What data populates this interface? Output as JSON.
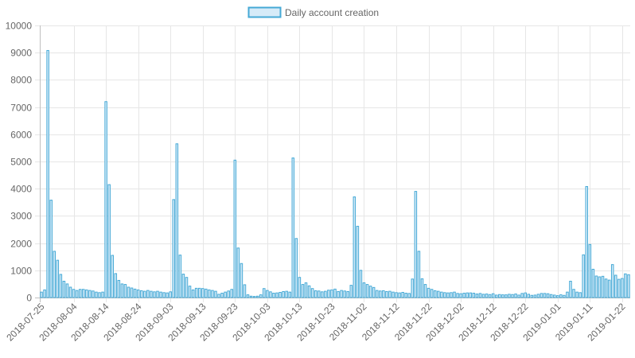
{
  "chart_data": {
    "type": "bar",
    "title": "",
    "xlabel": "",
    "ylabel": "",
    "ylim": [
      0,
      10000
    ],
    "yticks": [
      0,
      1000,
      2000,
      3000,
      4000,
      5000,
      6000,
      7000,
      8000,
      9000,
      10000
    ],
    "grid": true,
    "legend_position": "top-center",
    "x_start": "2018-07-25",
    "x_end": "2019-01-24",
    "x_tick_labels": [
      "2018-07-25",
      "2018-08-04",
      "2018-08-14",
      "2018-08-24",
      "2018-09-03",
      "2018-09-13",
      "2018-09-23",
      "2018-10-03",
      "2018-10-13",
      "2018-10-23",
      "2018-11-02",
      "2018-11-12",
      "2018-11-22",
      "2018-12-02",
      "2018-12-12",
      "2018-12-22",
      "2019-01-01",
      "2019-01-11",
      "2019-01-22"
    ],
    "series": [
      {
        "name": "Daily account creation",
        "fill_color": "#d6ebf8",
        "border_color": "#45a9d6",
        "values": [
          200,
          280,
          9080,
          3580,
          1700,
          1370,
          850,
          600,
          500,
          380,
          300,
          260,
          300,
          300,
          280,
          260,
          240,
          200,
          180,
          200,
          7200,
          4150,
          1550,
          880,
          630,
          500,
          480,
          380,
          350,
          310,
          280,
          250,
          230,
          260,
          230,
          210,
          230,
          200,
          180,
          170,
          210,
          3600,
          5650,
          1560,
          860,
          740,
          420,
          280,
          340,
          340,
          330,
          310,
          280,
          260,
          230,
          120,
          160,
          200,
          240,
          300,
          5050,
          1820,
          1250,
          470,
          100,
          50,
          40,
          50,
          100,
          330,
          260,
          210,
          160,
          170,
          190,
          220,
          230,
          200,
          5130,
          2170,
          740,
          480,
          540,
          430,
          330,
          250,
          240,
          210,
          230,
          270,
          280,
          310,
          220,
          260,
          240,
          220,
          450,
          3700,
          2620,
          1000,
          540,
          480,
          420,
          370,
          260,
          240,
          250,
          220,
          230,
          200,
          180,
          170,
          190,
          160,
          150,
          680,
          3900,
          1700,
          690,
          480,
          340,
          300,
          250,
          230,
          200,
          180,
          170,
          180,
          200,
          150,
          140,
          160,
          170,
          170,
          160,
          130,
          150,
          120,
          130,
          110,
          140,
          90,
          110,
          100,
          100,
          120,
          110,
          130,
          90,
          150,
          170,
          120,
          80,
          90,
          120,
          150,
          150,
          140,
          110,
          90,
          70,
          100,
          80,
          200,
          600,
          300,
          200,
          180,
          1570,
          4080,
          1950,
          1040,
          790,
          760,
          780,
          680,
          640,
          1210,
          820,
          670,
          700,
          870,
          840
        ]
      }
    ]
  }
}
